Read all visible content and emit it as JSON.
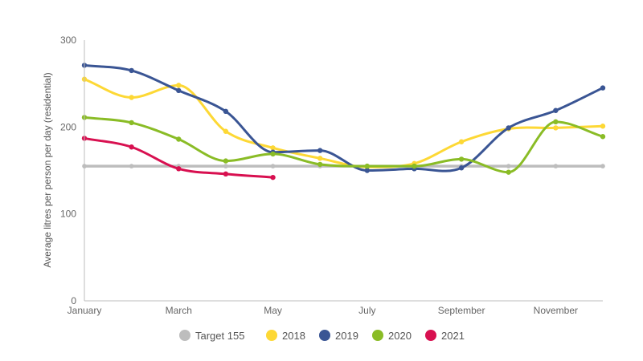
{
  "chart_data": {
    "type": "line",
    "title": "",
    "xlabel": "",
    "ylabel": "Average litres per person per day (residential)",
    "ylim": [
      0,
      300
    ],
    "yticks": [
      "0",
      "100",
      "200",
      "300"
    ],
    "x": [
      "Jan",
      "Feb",
      "Mar",
      "Apr",
      "May",
      "Jun",
      "Jul",
      "Aug",
      "Sep",
      "Oct",
      "Nov",
      "Dec"
    ],
    "xtick_labels": [
      "January",
      "",
      "March",
      "",
      "May",
      "",
      "July",
      "",
      "September",
      "",
      "November",
      ""
    ],
    "smooth": true,
    "grid": false,
    "legend_position": "bottom",
    "series": [
      {
        "name": "Target 155",
        "color": "#bdbdbd",
        "values": [
          155,
          155,
          155,
          155,
          155,
          155,
          155,
          155,
          155,
          155,
          155,
          155
        ]
      },
      {
        "name": "2018",
        "color": "#fdd835",
        "values": [
          255,
          234,
          248,
          195,
          176,
          164,
          154,
          158,
          183,
          198,
          199,
          201
        ]
      },
      {
        "name": "2019",
        "color": "#3a5594",
        "values": [
          271,
          265,
          242,
          218,
          171,
          173,
          150,
          152,
          153,
          199,
          219,
          245
        ]
      },
      {
        "name": "2020",
        "color": "#8abc26",
        "values": [
          211,
          205,
          186,
          161,
          169,
          157,
          155,
          155,
          163,
          148,
          206,
          189
        ]
      },
      {
        "name": "2021",
        "color": "#d81050",
        "values": [
          187,
          177,
          152,
          146,
          142,
          null,
          null,
          null,
          null,
          null,
          null,
          null
        ]
      }
    ]
  }
}
